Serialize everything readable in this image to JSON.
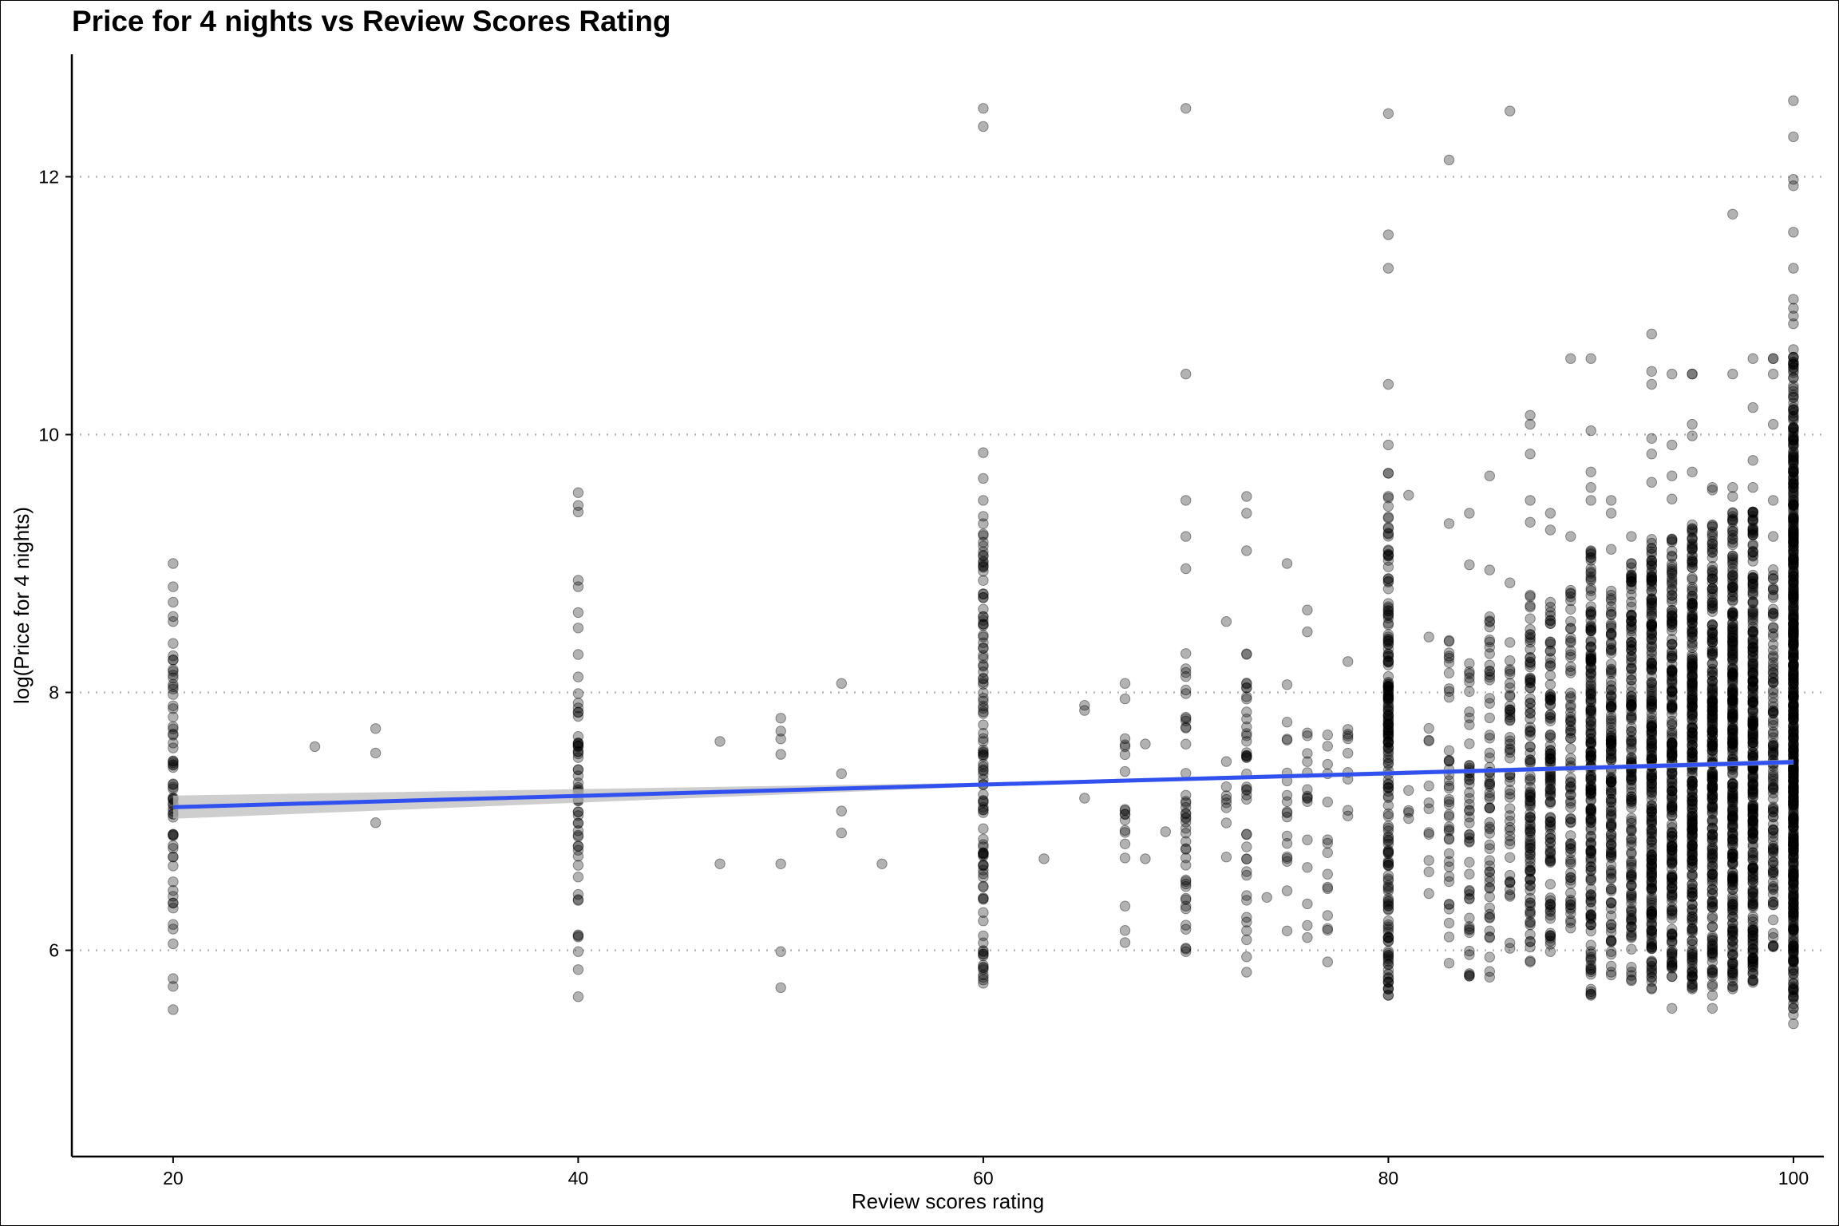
{
  "chart_data": {
    "type": "scatter",
    "title": "Price for 4 nights vs Review Scores Rating",
    "xlabel": "Review scores rating",
    "ylabel": "log(Price for 4 nights)",
    "xlim": [
      15,
      101.5
    ],
    "ylim": [
      4.4,
      12.95
    ],
    "xticks": [
      20,
      40,
      60,
      80,
      100
    ],
    "yticks": [
      6,
      8,
      10,
      12
    ],
    "grid": "horizontal dotted at y ticks",
    "point_color": "#000000",
    "point_opacity": 0.3,
    "fit_line": {
      "color": "#3050f0",
      "band_color": "#bdbdbd",
      "x": [
        20,
        100
      ],
      "y": [
        7.11,
        7.46
      ]
    },
    "clusters": [
      {
        "x": 20,
        "ymin": 5.9,
        "ymax": 8.6,
        "n": 60
      },
      {
        "x": 40,
        "ymin": 6.1,
        "ymax": 8.3,
        "n": 50
      },
      {
        "x": 60,
        "ymin": 5.65,
        "ymax": 9.4,
        "n": 110
      },
      {
        "x": 67,
        "ymin": 6.1,
        "ymax": 7.8,
        "n": 16
      },
      {
        "x": 70,
        "ymin": 6.0,
        "ymax": 8.4,
        "n": 40
      },
      {
        "x": 72,
        "ymin": 6.7,
        "ymax": 7.6,
        "n": 8
      },
      {
        "x": 73,
        "ymin": 5.9,
        "ymax": 8.3,
        "n": 40
      },
      {
        "x": 75,
        "ymin": 6.2,
        "ymax": 7.8,
        "n": 16
      },
      {
        "x": 76,
        "ymin": 6.0,
        "ymax": 7.8,
        "n": 14
      },
      {
        "x": 77,
        "ymin": 6.0,
        "ymax": 8.0,
        "n": 12
      },
      {
        "x": 78,
        "ymin": 6.8,
        "ymax": 7.8,
        "n": 8
      },
      {
        "x": 80,
        "ymin": 5.65,
        "ymax": 9.7,
        "n": 200
      },
      {
        "x": 81,
        "ymin": 6.8,
        "ymax": 7.3,
        "n": 4
      },
      {
        "x": 82,
        "ymin": 6.4,
        "ymax": 8.1,
        "n": 10
      },
      {
        "x": 83,
        "ymin": 5.9,
        "ymax": 8.5,
        "n": 40
      },
      {
        "x": 84,
        "ymin": 5.8,
        "ymax": 8.3,
        "n": 50
      },
      {
        "x": 85,
        "ymin": 5.7,
        "ymax": 8.6,
        "n": 60
      },
      {
        "x": 86,
        "ymin": 6.0,
        "ymax": 8.4,
        "n": 50
      },
      {
        "x": 87,
        "ymin": 5.9,
        "ymax": 8.8,
        "n": 110
      },
      {
        "x": 88,
        "ymin": 6.0,
        "ymax": 8.7,
        "n": 110
      },
      {
        "x": 89,
        "ymin": 6.1,
        "ymax": 8.8,
        "n": 80
      },
      {
        "x": 90,
        "ymin": 5.65,
        "ymax": 9.1,
        "n": 200
      },
      {
        "x": 91,
        "ymin": 5.8,
        "ymax": 8.8,
        "n": 140
      },
      {
        "x": 92,
        "ymin": 5.75,
        "ymax": 9.0,
        "n": 160
      },
      {
        "x": 93,
        "ymin": 5.7,
        "ymax": 9.2,
        "n": 250
      },
      {
        "x": 94,
        "ymin": 5.7,
        "ymax": 9.2,
        "n": 220
      },
      {
        "x": 95,
        "ymin": 5.7,
        "ymax": 9.3,
        "n": 280
      },
      {
        "x": 96,
        "ymin": 5.7,
        "ymax": 9.3,
        "n": 250
      },
      {
        "x": 97,
        "ymin": 5.7,
        "ymax": 9.4,
        "n": 300
      },
      {
        "x": 98,
        "ymin": 5.75,
        "ymax": 9.4,
        "n": 300
      },
      {
        "x": 99,
        "ymin": 6.0,
        "ymax": 9.0,
        "n": 120
      },
      {
        "x": 100,
        "ymin": 5.55,
        "ymax": 10.6,
        "n": 600
      }
    ],
    "points": [
      [
        20,
        9.0
      ],
      [
        20,
        8.82
      ],
      [
        20,
        8.7
      ],
      [
        20,
        8.55
      ],
      [
        20,
        6.05
      ],
      [
        20,
        5.78
      ],
      [
        20,
        5.72
      ],
      [
        20,
        5.54
      ],
      [
        27,
        7.58
      ],
      [
        30,
        7.72
      ],
      [
        30,
        7.53
      ],
      [
        30,
        6.99
      ],
      [
        40,
        9.55
      ],
      [
        40,
        9.45
      ],
      [
        40,
        9.4
      ],
      [
        40,
        8.87
      ],
      [
        40,
        8.82
      ],
      [
        40,
        8.62
      ],
      [
        40,
        8.5
      ],
      [
        40,
        5.99
      ],
      [
        40,
        5.85
      ],
      [
        40,
        5.64
      ],
      [
        47,
        7.62
      ],
      [
        47,
        6.67
      ],
      [
        50,
        7.8
      ],
      [
        50,
        7.7
      ],
      [
        50,
        7.64
      ],
      [
        50,
        7.52
      ],
      [
        50,
        6.67
      ],
      [
        50,
        5.99
      ],
      [
        50,
        5.71
      ],
      [
        53,
        8.07
      ],
      [
        53,
        7.37
      ],
      [
        53,
        7.08
      ],
      [
        53,
        6.91
      ],
      [
        55,
        6.67
      ],
      [
        60,
        12.53
      ],
      [
        60,
        12.39
      ],
      [
        60,
        9.86
      ],
      [
        60,
        9.66
      ],
      [
        60,
        9.49
      ],
      [
        60,
        5.99
      ],
      [
        60,
        5.85
      ],
      [
        63,
        6.71
      ],
      [
        65,
        7.9
      ],
      [
        65,
        7.86
      ],
      [
        65,
        7.18
      ],
      [
        67,
        8.07
      ],
      [
        67,
        7.95
      ],
      [
        67,
        6.06
      ],
      [
        68,
        7.6
      ],
      [
        68,
        6.71
      ],
      [
        69,
        6.92
      ],
      [
        70,
        12.53
      ],
      [
        70,
        10.47
      ],
      [
        70,
        9.49
      ],
      [
        70,
        9.21
      ],
      [
        70,
        8.96
      ],
      [
        70,
        6.01
      ],
      [
        70,
        5.99
      ],
      [
        72,
        8.55
      ],
      [
        73,
        9.52
      ],
      [
        73,
        9.39
      ],
      [
        73,
        9.1
      ],
      [
        73,
        5.83
      ],
      [
        74,
        6.41
      ],
      [
        75,
        9.0
      ],
      [
        75,
        8.06
      ],
      [
        75,
        6.15
      ],
      [
        76,
        8.64
      ],
      [
        76,
        8.47
      ],
      [
        76,
        6.36
      ],
      [
        77,
        7.15
      ],
      [
        77,
        6.49
      ],
      [
        77,
        5.91
      ],
      [
        78,
        8.24
      ],
      [
        78,
        7.38
      ],
      [
        80,
        12.49
      ],
      [
        80,
        11.55
      ],
      [
        80,
        11.29
      ],
      [
        80,
        10.39
      ],
      [
        80,
        9.92
      ],
      [
        81,
        9.53
      ],
      [
        82,
        8.43
      ],
      [
        82,
        6.44
      ],
      [
        83,
        12.13
      ],
      [
        83,
        9.31
      ],
      [
        84,
        9.39
      ],
      [
        84,
        8.99
      ],
      [
        85,
        9.68
      ],
      [
        85,
        8.95
      ],
      [
        86,
        12.51
      ],
      [
        86,
        8.85
      ],
      [
        87,
        10.15
      ],
      [
        87,
        10.08
      ],
      [
        87,
        9.85
      ],
      [
        87,
        9.49
      ],
      [
        87,
        9.32
      ],
      [
        88,
        9.39
      ],
      [
        88,
        9.26
      ],
      [
        88,
        5.99
      ],
      [
        89,
        10.59
      ],
      [
        89,
        9.21
      ],
      [
        90,
        10.59
      ],
      [
        90,
        10.03
      ],
      [
        90,
        9.71
      ],
      [
        90,
        9.59
      ],
      [
        90,
        9.49
      ],
      [
        91,
        9.49
      ],
      [
        91,
        9.39
      ],
      [
        91,
        9.11
      ],
      [
        91,
        5.99
      ],
      [
        91,
        5.83
      ],
      [
        92,
        9.21
      ],
      [
        92,
        9.0
      ],
      [
        93,
        10.78
      ],
      [
        93,
        10.49
      ],
      [
        93,
        10.39
      ],
      [
        93,
        9.97
      ],
      [
        93,
        9.85
      ],
      [
        93,
        9.63
      ],
      [
        94,
        10.47
      ],
      [
        94,
        9.92
      ],
      [
        94,
        9.68
      ],
      [
        94,
        9.5
      ],
      [
        94,
        5.55
      ],
      [
        95,
        10.47
      ],
      [
        95,
        10.47
      ],
      [
        95,
        10.08
      ],
      [
        95,
        9.99
      ],
      [
        95,
        9.71
      ],
      [
        96,
        9.59
      ],
      [
        96,
        9.57
      ],
      [
        96,
        5.55
      ],
      [
        96,
        5.65
      ],
      [
        97,
        11.71
      ],
      [
        97,
        10.47
      ],
      [
        97,
        9.59
      ],
      [
        97,
        9.52
      ],
      [
        98,
        10.59
      ],
      [
        98,
        10.21
      ],
      [
        98,
        9.8
      ],
      [
        98,
        9.59
      ],
      [
        99,
        10.59
      ],
      [
        99,
        10.59
      ],
      [
        99,
        10.47
      ],
      [
        99,
        10.08
      ],
      [
        99,
        9.49
      ],
      [
        99,
        9.21
      ],
      [
        100,
        12.59
      ],
      [
        100,
        12.31
      ],
      [
        100,
        11.98
      ],
      [
        100,
        11.93
      ],
      [
        100,
        11.57
      ],
      [
        100,
        11.29
      ],
      [
        100,
        11.05
      ],
      [
        100,
        10.98
      ],
      [
        100,
        10.92
      ],
      [
        100,
        10.86
      ],
      [
        100,
        10.66
      ],
      [
        100,
        10.6
      ],
      [
        100,
        5.43
      ],
      [
        100,
        5.5
      ]
    ]
  }
}
